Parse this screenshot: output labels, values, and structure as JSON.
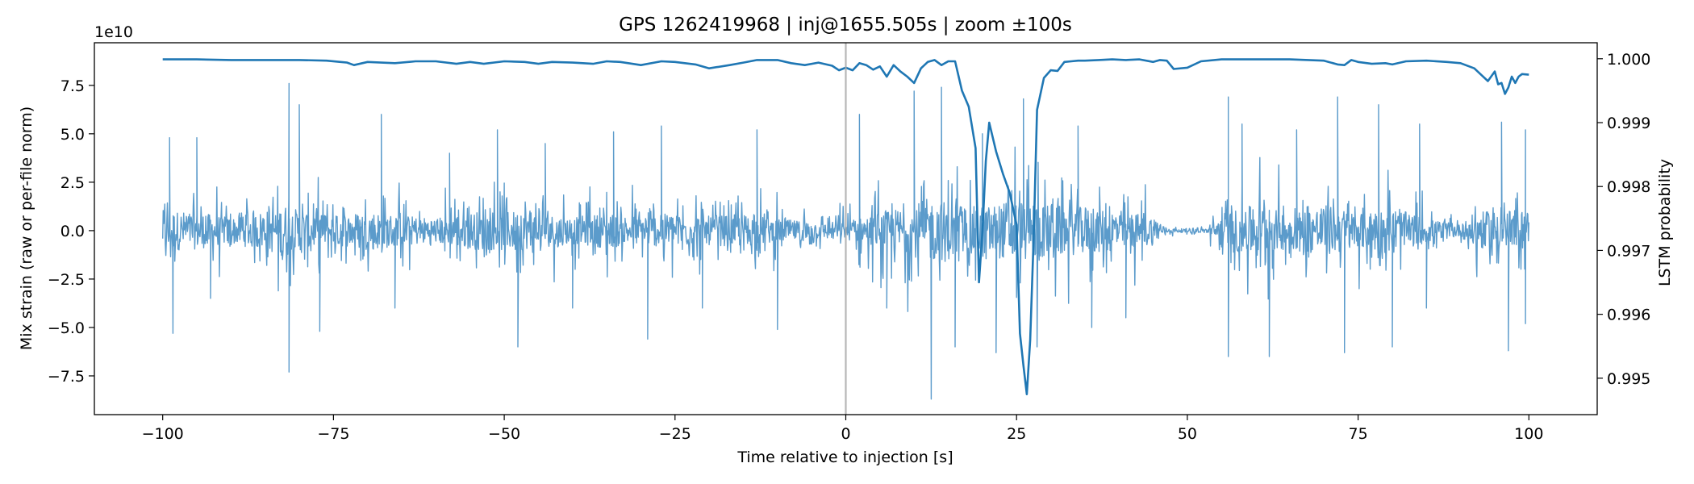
{
  "chart_data": {
    "type": "line",
    "title": "GPS 1262419968 | inj@1655.505s | zoom ±100s",
    "xlabel": "Time relative to injection [s]",
    "ylabel_left": "Mix strain (raw or per-file norm)",
    "ylabel_right": "LSTM probability",
    "left_offset_label": "1e10",
    "xlim": [
      -110,
      110
    ],
    "ylim_left": [
      -9.5,
      9.7
    ],
    "ylim_right": [
      0.99443,
      1.00025
    ],
    "x_ticks": [
      -100,
      -75,
      -50,
      -25,
      0,
      25,
      50,
      75,
      100
    ],
    "x_tick_labels": [
      "−100",
      "−75",
      "−50",
      "−25",
      "0",
      "25",
      "50",
      "75",
      "100"
    ],
    "left_ticks": [
      -7.5,
      -5.0,
      -2.5,
      0.0,
      2.5,
      5.0,
      7.5
    ],
    "left_tick_labels": [
      "−7.5",
      "−5.0",
      "−2.5",
      "0.0",
      "2.5",
      "5.0",
      "7.5"
    ],
    "right_ticks": [
      0.995,
      0.996,
      0.997,
      0.998,
      0.999,
      1.0
    ],
    "right_tick_labels": [
      "0.995",
      "0.996",
      "0.997",
      "0.998",
      "0.999",
      "1.000"
    ],
    "injection_time": 0,
    "colors": {
      "strain": "#5b9bcb",
      "probability": "#1f77b4",
      "injection_line": "#aaaaaa",
      "axis": "#000000"
    },
    "series": [
      {
        "name": "Mix strain (×1e10)",
        "axis": "left",
        "style": "noise",
        "envelope_x": [
          -100,
          -95,
          -90,
          -85,
          -82,
          -80,
          -75,
          -70,
          -65,
          -60,
          -55,
          -50,
          -45,
          -40,
          -35,
          -30,
          -25,
          -20,
          -15,
          -10,
          -5,
          0,
          5,
          10,
          12,
          15,
          20,
          25,
          30,
          35,
          40,
          45,
          47,
          50,
          53,
          55,
          60,
          65,
          70,
          75,
          80,
          85,
          90,
          92,
          95,
          100
        ],
        "envelope_amp": [
          3.5,
          3.2,
          2.2,
          3.5,
          4.5,
          3.5,
          2.5,
          3.5,
          2.6,
          2.2,
          3.2,
          3.5,
          3.0,
          2.3,
          3.0,
          2.5,
          3.0,
          2.5,
          2.8,
          2.0,
          1.5,
          1.5,
          3.0,
          4.5,
          5.5,
          5.0,
          4.0,
          5.5,
          4.5,
          4.0,
          3.5,
          2.5,
          0.4,
          0.3,
          0.4,
          3.0,
          4.5,
          3.0,
          4.5,
          3.0,
          4.0,
          2.0,
          1.0,
          3.0,
          3.5,
          3.5
        ],
        "peaks": [
          {
            "x": -99,
            "y": 4.8
          },
          {
            "x": -98.5,
            "y": -5.3
          },
          {
            "x": -95,
            "y": 4.8
          },
          {
            "x": -93,
            "y": -3.5
          },
          {
            "x": -81.5,
            "y": 7.6
          },
          {
            "x": -81.5,
            "y": -7.3
          },
          {
            "x": -80,
            "y": 6.5
          },
          {
            "x": -77,
            "y": -5.2
          },
          {
            "x": -68,
            "y": 6.0
          },
          {
            "x": -66,
            "y": -4.0
          },
          {
            "x": -58,
            "y": 4.0
          },
          {
            "x": -51,
            "y": 5.2
          },
          {
            "x": -48,
            "y": -6.0
          },
          {
            "x": -44,
            "y": 4.5
          },
          {
            "x": -40,
            "y": -4.0
          },
          {
            "x": -34,
            "y": 5.1
          },
          {
            "x": -29,
            "y": -5.6
          },
          {
            "x": -27,
            "y": 5.4
          },
          {
            "x": -21,
            "y": -4.0
          },
          {
            "x": -13,
            "y": 5.2
          },
          {
            "x": -10,
            "y": -5.1
          },
          {
            "x": 2,
            "y": 6.0
          },
          {
            "x": 6,
            "y": -4.0
          },
          {
            "x": 10,
            "y": 7.2
          },
          {
            "x": 12.5,
            "y": -8.7
          },
          {
            "x": 14,
            "y": 7.4
          },
          {
            "x": 16,
            "y": -6.0
          },
          {
            "x": 20,
            "y": 5.0
          },
          {
            "x": 22,
            "y": -6.3
          },
          {
            "x": 26,
            "y": 6.8
          },
          {
            "x": 28,
            "y": -6.0
          },
          {
            "x": 34,
            "y": 5.4
          },
          {
            "x": 36,
            "y": -5.0
          },
          {
            "x": 41,
            "y": -4.5
          },
          {
            "x": 56,
            "y": 6.9
          },
          {
            "x": 56,
            "y": -6.5
          },
          {
            "x": 58,
            "y": 5.5
          },
          {
            "x": 62,
            "y": -6.5
          },
          {
            "x": 66,
            "y": 5.2
          },
          {
            "x": 72,
            "y": 6.9
          },
          {
            "x": 73,
            "y": -6.3
          },
          {
            "x": 78,
            "y": 6.5
          },
          {
            "x": 80,
            "y": -6.0
          },
          {
            "x": 84,
            "y": 5.5
          },
          {
            "x": 85,
            "y": -4.0
          },
          {
            "x": 96,
            "y": 5.6
          },
          {
            "x": 97,
            "y": -6.2
          },
          {
            "x": 99.5,
            "y": 5.2
          },
          {
            "x": 99.5,
            "y": -4.8
          }
        ]
      },
      {
        "name": "LSTM probability",
        "axis": "right",
        "style": "line",
        "x": [
          -100,
          -95,
          -90,
          -85,
          -80,
          -76,
          -73,
          -72,
          -70,
          -66,
          -63,
          -60,
          -57,
          -55,
          -53,
          -50,
          -47,
          -45,
          -43,
          -40,
          -37,
          -35,
          -33,
          -30,
          -27,
          -25,
          -22,
          -20,
          -17,
          -15,
          -13,
          -10,
          -8,
          -6,
          -4,
          -2,
          -1,
          0,
          1,
          2,
          3,
          4,
          5,
          6,
          7,
          8,
          9,
          10,
          11,
          12,
          13,
          14,
          15,
          16,
          17,
          18,
          19,
          19.5,
          20,
          20.5,
          21,
          22,
          23,
          24,
          25,
          25.5,
          26,
          26.5,
          27,
          27.5,
          28,
          29,
          30,
          31,
          32,
          33,
          34,
          35,
          37,
          39,
          41,
          43,
          45,
          46,
          47,
          48,
          50,
          52,
          55,
          60,
          65,
          70,
          72,
          73,
          74,
          75,
          77,
          79,
          80,
          82,
          85,
          88,
          90,
          92,
          93,
          94,
          95,
          95.5,
          96,
          96.5,
          97,
          97.5,
          98,
          98.5,
          99,
          100
        ],
        "y": [
          0.99999,
          0.99999,
          0.99998,
          0.99998,
          0.99998,
          0.99997,
          0.99994,
          0.9999,
          0.99995,
          0.99993,
          0.99996,
          0.99996,
          0.99992,
          0.99995,
          0.99992,
          0.99996,
          0.99995,
          0.99992,
          0.99995,
          0.99994,
          0.99992,
          0.99996,
          0.99995,
          0.9999,
          0.99996,
          0.99995,
          0.99991,
          0.99985,
          0.9999,
          0.99994,
          0.99998,
          0.99998,
          0.99993,
          0.9999,
          0.99994,
          0.99989,
          0.99982,
          0.99986,
          0.99982,
          0.99993,
          0.9999,
          0.99983,
          0.99988,
          0.99972,
          0.9999,
          0.9998,
          0.99972,
          0.99962,
          0.99985,
          0.99995,
          0.99998,
          0.9999,
          0.99996,
          0.99996,
          0.9995,
          0.99925,
          0.9986,
          0.9965,
          0.9973,
          0.9984,
          0.999,
          0.99855,
          0.9982,
          0.9979,
          0.9974,
          0.9957,
          0.9952,
          0.99475,
          0.9956,
          0.9972,
          0.9992,
          0.9997,
          0.99982,
          0.99981,
          0.99995,
          0.99996,
          0.99997,
          0.99997,
          0.99998,
          0.99999,
          0.99998,
          0.99999,
          0.99995,
          0.99998,
          0.99997,
          0.99984,
          0.99986,
          0.99996,
          0.99999,
          0.99999,
          0.99999,
          0.99997,
          0.99991,
          0.9999,
          0.99998,
          0.99995,
          0.99992,
          0.99993,
          0.99991,
          0.99996,
          0.99997,
          0.99995,
          0.99993,
          0.99985,
          0.99975,
          0.99965,
          0.9998,
          0.9996,
          0.99962,
          0.99945,
          0.99955,
          0.99972,
          0.99962,
          0.99972,
          0.99976,
          0.99975
        ]
      }
    ]
  }
}
